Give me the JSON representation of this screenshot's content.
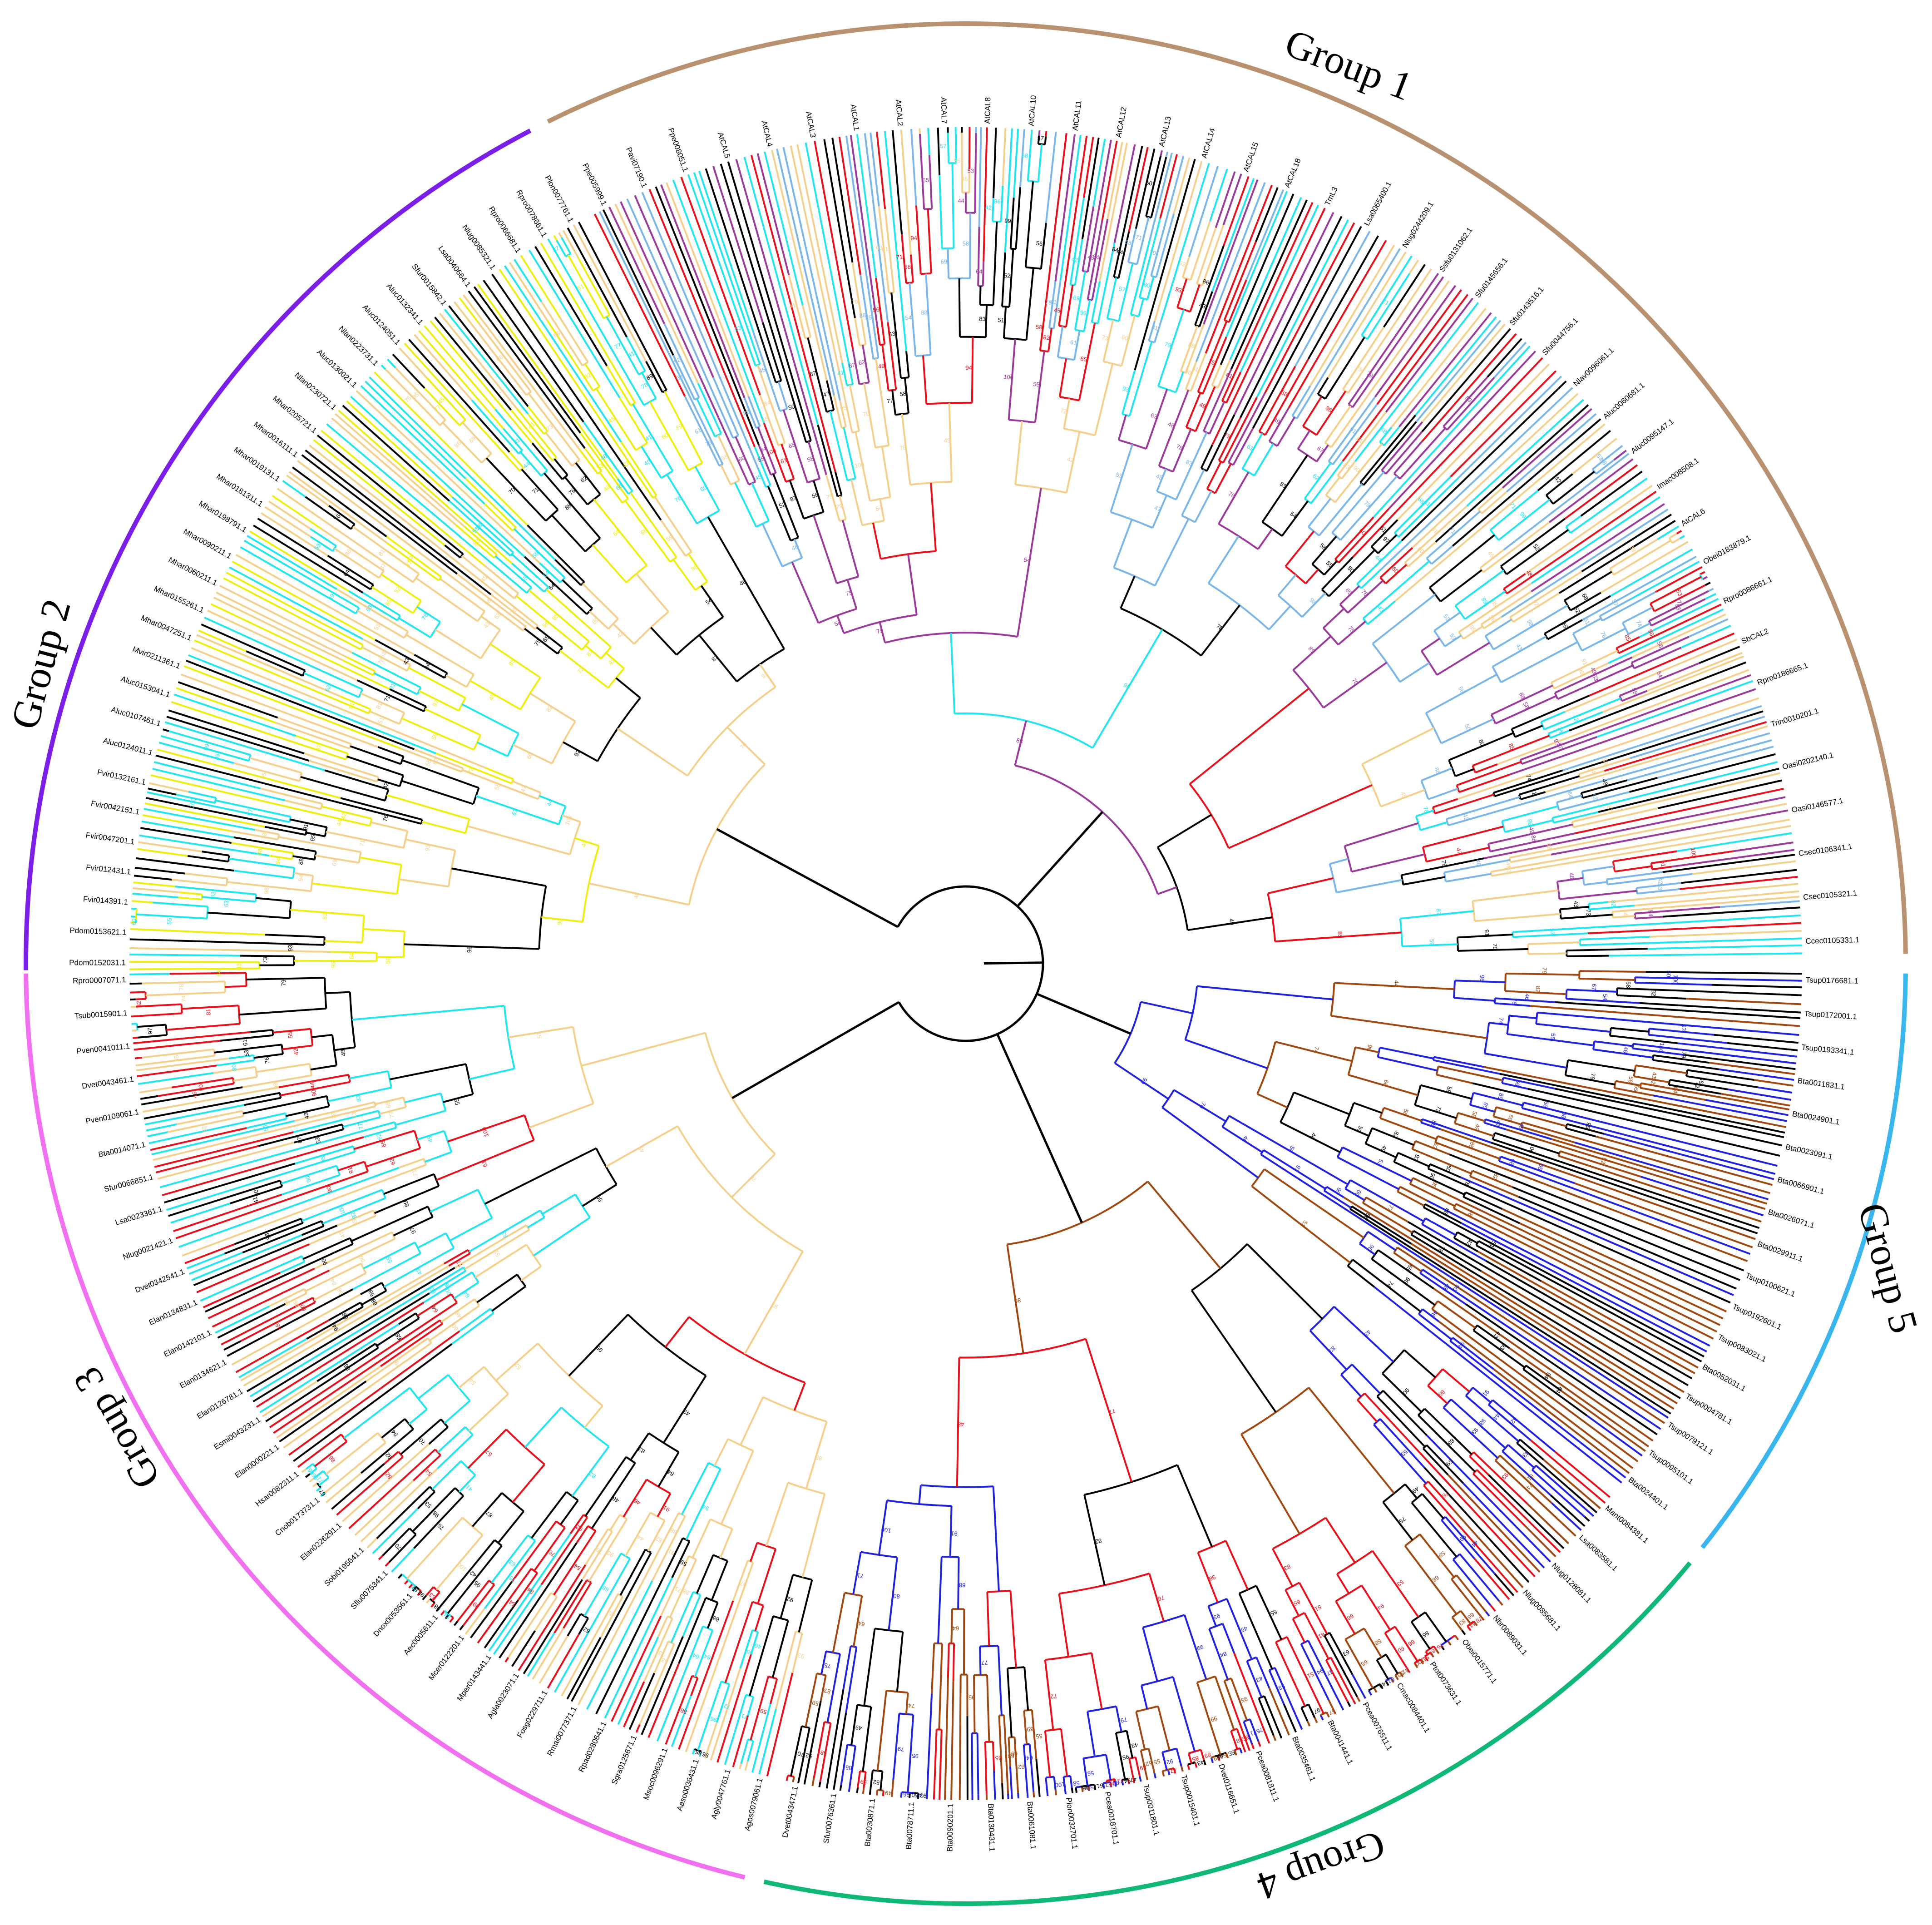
{
  "figure": {
    "type": "circular phylogenetic tree",
    "background": "#ffffff",
    "branch_default_color": "#000000",
    "palette": {
      "cyan": "#22e5f0",
      "wheat": "#f5cf8c",
      "red": "#e8101a",
      "brown": "#a0480f",
      "blue": "#2222dd",
      "purple": "#9b3a9b",
      "lightblue": "#7ab6e8",
      "yellow": "#eeee10",
      "pink_text": "#ee66ee",
      "lightblue_text": "#6ec6ee",
      "salmon_text": "#f4b8b8"
    }
  },
  "groups": [
    {
      "label": "Group 1",
      "color": "#b89270"
    },
    {
      "label": "Group 2",
      "color": "#7a1ee8"
    },
    {
      "label": "Group 3",
      "color": "#f070f0"
    },
    {
      "label": "Group 4",
      "color": "#10b878"
    },
    {
      "label": "Group 5",
      "color": "#3ab6ee"
    }
  ],
  "clades": [
    {
      "group": "Group 1",
      "branch_colors": [
        "cyan",
        "wheat",
        "black",
        "lightblue",
        "red",
        "purple"
      ],
      "visible_tips": [
        "Ppe005999.1",
        "Pavi07190.1",
        "Ppe008051.1",
        "AtCAL5",
        "AtCAL4",
        "AtCAL3",
        "AtCAL1",
        "AtCAL2",
        "AtCAL7",
        "AtCAL8",
        "AtCAL10",
        "AtCAL11",
        "AtCAL12",
        "AtCAL13",
        "AtCAL14",
        "AtCAL15",
        "AtCAL18",
        "TmL3",
        "Lsa0065400.1",
        "Nlug0244209.1",
        "Ssfu0131062.1",
        "Sfu0145656.1",
        "Sfu0143516.1",
        "Sfu0044756.1",
        "Nlav0096061.1",
        "Aluc0060681.1",
        "Aluc0095147.1",
        "Imac008508.1",
        "AtCAL6",
        "Obei0183879.1",
        "Rpro0086661.1",
        "SbCAL2",
        "Rpro0186665.1",
        "Trin0010201.1",
        "Oasi0202140.1",
        "Oasi0146577.1",
        "Csec0106341.1",
        "Csec0105321.1",
        "Ccec0105331.1"
      ]
    },
    {
      "group": "Group 2",
      "branch_colors": [
        "wheat",
        "cyan",
        "yellow",
        "black"
      ],
      "visible_tips": [
        "Pdom0152031.1",
        "Pdom0153621.1",
        "Fvir014391.1",
        "Fvir012431.1",
        "Fvir0047201.1",
        "Fvir0042151.1",
        "Fvir0132161.1",
        "Aluc0124011.1",
        "Aluc0107461.1",
        "Aluc0153041.1",
        "Mvir0211361.1",
        "Mhar0047251.1",
        "Mhar0155261.1",
        "Mhar0060211.1",
        "Mhar0090211.1",
        "Mhar0198791.1",
        "Mhar0181311.1",
        "Mhar0019131.1",
        "Mhar0016111.1",
        "Mhar0205721.1",
        "Nlan0230721.1",
        "Aluc0130021.1",
        "Nlan0223731.1",
        "Aluc0124051.1",
        "Aluc0132341.1",
        "Sfur0015842.1",
        "Lsa0040664.1",
        "Nlug0085321.1",
        "Rpro0066681.1",
        "Rpro0078661.1",
        "Plon0077761.1"
      ]
    },
    {
      "group": "Group 3",
      "branch_colors": [
        "red",
        "black",
        "cyan",
        "wheat"
      ],
      "visible_tips": [
        "Agos0079061.1",
        "Agly0047761.1",
        "Aaso0036431.1",
        "Msoc0096291.1",
        "Sgra0125671.1",
        "Rpad0280641.1",
        "Rmai0077371.1",
        "Fosg0229711.1",
        "Agla0023071.1",
        "Mper0143441.1",
        "Mcer0122201.1",
        "Aec0005611.1",
        "Dnox0053561.1",
        "Sflu0075341.1",
        "Sobi0195641.1",
        "Elan0226291.1",
        "Cnob0173731.1",
        "Hsar0082311.1",
        "Elan0000221.1",
        "Esmi0043231.1",
        "Elan0126781.1",
        "Elan0134621.1",
        "Elan0142101.1",
        "Elan0134831.1",
        "Dvet0342541.1",
        "Nlug0021421.1",
        "Lsa0023361.1",
        "Sfur0066851.1",
        "Bta0014071.1",
        "Pven0109061.1",
        "Dvet0043461.1",
        "Pven0041011.1",
        "Tsub0015901.1",
        "Rpro0007071.1"
      ]
    },
    {
      "group": "Group 4",
      "branch_colors": [
        "black",
        "brown",
        "blue",
        "red"
      ],
      "visible_tips": [
        "Mant0084381.1",
        "Lsa0083581.1",
        "Nlug0128081.1",
        "Nlug0085681.1",
        "Nbr0089031.1",
        "Obei0015771.1",
        "Ptot0073631.1",
        "Cmac0084401.1",
        "Pcea0076511.1",
        "Bta0041441.1",
        "Bta0035461.1",
        "Pcea0081811.1",
        "Dvet0116651.1",
        "Tsup0015401.1",
        "Tsup0011801.1",
        "Pcea0018701.1",
        "Plon0032701.1",
        "Bta0061081.1",
        "Bta0130431.1",
        "Bta0090201.1",
        "Bta0078711.1",
        "Bta0030871.1",
        "Sfur0076361.1",
        "Dvet0043471.1"
      ]
    },
    {
      "group": "Group 5",
      "branch_colors": [
        "brown",
        "black",
        "blue"
      ],
      "visible_tips": [
        "Tsup0176681.1",
        "Tsup0172001.1",
        "Tsup0193341.1",
        "Bta0011831.1",
        "Bta0024901.1",
        "Bta0023091.1",
        "Bta0066901.1",
        "Bta0026071.1",
        "Bta0029911.1",
        "Tsup0100621.1",
        "Tsup0192601.1",
        "Tsup0083021.1",
        "Bta0052031.1",
        "Tsup0004781.1",
        "Tsup0079121.1",
        "Tsup0095101.1",
        "Bta0024401.1"
      ]
    }
  ],
  "bootstrap_values": [
    "100",
    "99",
    "98",
    "97",
    "96",
    "95",
    "94",
    "93",
    "92",
    "91",
    "90",
    "89",
    "88",
    "87",
    "86",
    "85",
    "84",
    "83",
    "82",
    "81",
    "80",
    "79",
    "78",
    "77",
    "76",
    "75",
    "74",
    "73",
    "72",
    "71",
    "70",
    "69",
    "68",
    "67",
    "66",
    "65",
    "64",
    "63",
    "62",
    "61",
    "60",
    "59",
    "58",
    "57",
    "56",
    "55",
    "54",
    "53",
    "52",
    "51",
    "50",
    "49",
    "48",
    "47",
    "46",
    "45",
    "44",
    "43",
    "42",
    "41",
    "40",
    "39",
    "38",
    "37",
    "36",
    "35",
    "34",
    "33",
    "32",
    "31",
    "30",
    "29",
    "28",
    "27",
    "26",
    "25",
    "24",
    "23",
    "22",
    "21",
    "20",
    "19",
    "18",
    "17",
    "16",
    "15",
    "14",
    "13",
    "12",
    "11",
    "10",
    "9",
    "8",
    "7",
    "6",
    "5",
    "4",
    "3",
    "2",
    "1",
    "0"
  ]
}
